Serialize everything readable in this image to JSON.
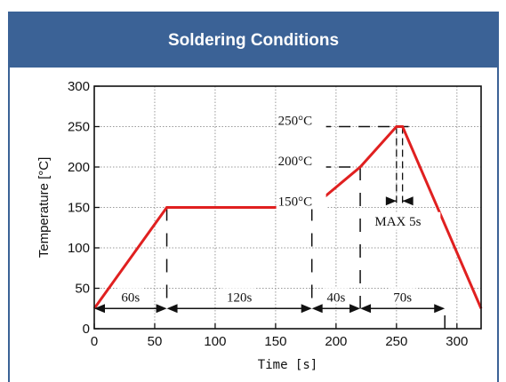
{
  "header": {
    "title": "Soldering Conditions"
  },
  "colors": {
    "header_bg": "#3b6296",
    "profile": "#e02020",
    "grid": "#9a9a9a"
  },
  "chart_data": {
    "type": "line",
    "xlabel": "Time [s]",
    "ylabel": "Temperature [°C]",
    "xlim": [
      0,
      320
    ],
    "ylim": [
      0,
      300
    ],
    "xticks": [
      0,
      50,
      100,
      150,
      200,
      250,
      300
    ],
    "yticks": [
      0,
      50,
      100,
      150,
      200,
      250,
      300
    ],
    "grid": true,
    "series": [
      {
        "x": [
          0,
          60,
          180,
          220,
          250,
          255,
          320
        ],
        "y": [
          25,
          150,
          150,
          200,
          250,
          250,
          25
        ]
      }
    ],
    "temperature_labels": [
      {
        "text": "250°C",
        "y": 250
      },
      {
        "text": "200°C",
        "y": 200
      },
      {
        "text": "150°C",
        "y": 150
      }
    ],
    "durations": [
      {
        "text": "60s",
        "from": 0,
        "to": 60
      },
      {
        "text": "120s",
        "from": 60,
        "to": 180
      },
      {
        "text": "40s",
        "from": 180,
        "to": 220
      },
      {
        "text": "70s",
        "from": 220,
        "to": 290
      }
    ],
    "peak_annotation": {
      "text": "MAX 5s",
      "from": 250,
      "to": 255
    }
  }
}
